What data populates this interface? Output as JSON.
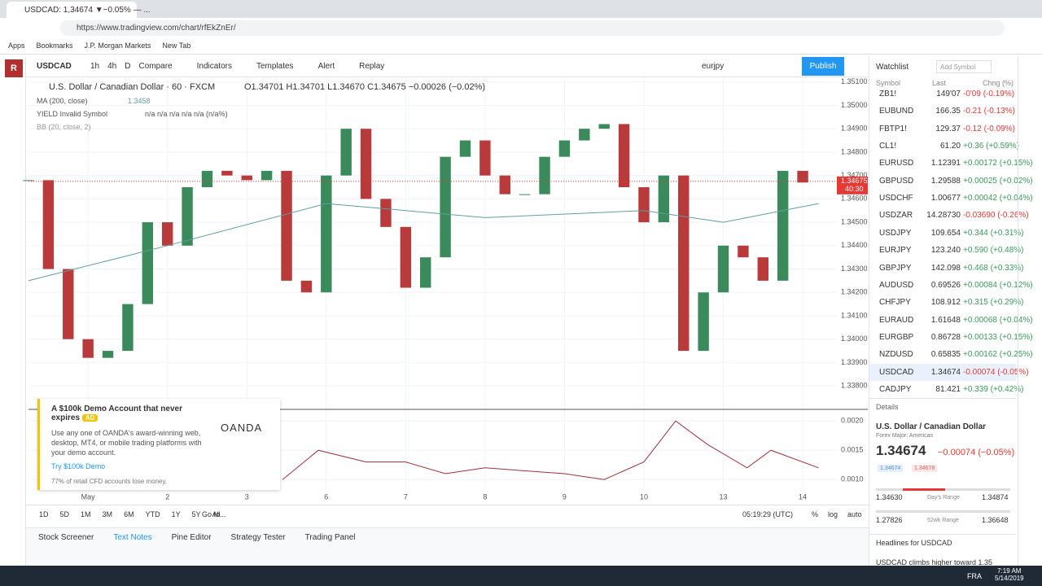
{
  "browser": {
    "tab": "USDCAD: 1,34674 ▼−0.05% — ...",
    "url": "https://www.tradingview.com/chart/rfEkZnEr/",
    "bookmarks": [
      "Apps",
      "Bookmarks",
      "J.P. Morgan Markets",
      "New Tab"
    ]
  },
  "toolbar": {
    "symbol": "USDCAD",
    "intervals": [
      "1h",
      "4h",
      "D"
    ],
    "buttons": [
      "Compare",
      "Indicators",
      "Templates",
      "Alert",
      "Replay"
    ],
    "layout": "eurjpy",
    "publish": "Publish"
  },
  "legend": {
    "title": "U.S. Dollar / Canadian Dollar · 60 · FXCM",
    "ohlc": "O1.34701 H1.34701 L1.34670 C1.34675 −0.00026 (−0.02%)",
    "ma": "MA (200, close)",
    "ma_value": "1.3458",
    "yield": "YIELD Invalid Symbol",
    "yield_values": "n/a n/a n/a n/a n/a (n/a%)",
    "bb": "BB (20, close, 2)"
  },
  "ad": {
    "title": "A $100k Demo Account that never expires",
    "badge": "AD",
    "brand": "OANDA",
    "body": "Use any one of OANDA's award-winning web, desktop, MT4, or mobile trading platforms with your demo account.",
    "link": "Try $100k Demo",
    "risk": "77% of retail CFD accounts lose money."
  },
  "chart_data": {
    "type": "candlestick",
    "up_color": "#3b8a5b",
    "down_color": "#b83a3a",
    "x": [
      -0.75,
      -0.5,
      -0.25,
      0,
      0.25,
      0.5,
      0.75,
      1,
      1.25,
      1.5,
      1.75,
      2,
      2.25,
      2.5,
      2.75,
      3,
      3.25,
      3.5,
      3.75,
      4,
      4.25,
      4.5,
      4.75,
      5,
      5.25,
      5.5,
      5.75,
      6,
      6.25,
      6.5,
      6.75,
      7,
      7.25,
      7.5,
      7.75,
      8,
      8.25,
      8.5,
      8.75,
      9
    ],
    "values": [
      1.3468,
      1.343,
      1.34,
      1.3392,
      1.3395,
      1.3415,
      1.345,
      1.344,
      1.3465,
      1.3472,
      1.347,
      1.3468,
      1.3472,
      1.3425,
      1.342,
      1.347,
      1.349,
      1.346,
      1.3448,
      1.3422,
      1.3435,
      1.3478,
      1.3485,
      1.347,
      1.3462,
      1.3462,
      1.3478,
      1.3485,
      1.349,
      1.3492,
      1.3465,
      1.345,
      1.347,
      1.3395,
      1.342,
      1.344,
      1.3435,
      1.3425,
      1.3472,
      1.3467
    ],
    "ma": {
      "color": "#5f9ea0",
      "x": [
        -0.75,
        1,
        3,
        5,
        7,
        8,
        9.2
      ],
      "values": [
        1.3425,
        1.344,
        1.3458,
        1.3452,
        1.3455,
        1.345,
        1.3458
      ]
    },
    "last_price": {
      "value": 1.34675,
      "label": "1.34675"
    },
    "countdown": "40:30",
    "xlim": [
      -0.75,
      9.43
    ],
    "ylim": [
      1.3371,
      1.3512
    ],
    "xticks": [
      {
        "value": 0,
        "label": "May"
      },
      {
        "value": 1,
        "label": "2"
      },
      {
        "value": 2,
        "label": "3"
      },
      {
        "value": 3,
        "label": "6"
      },
      {
        "value": 4,
        "label": "7"
      },
      {
        "value": 5,
        "label": "8"
      },
      {
        "value": 6,
        "label": "9"
      },
      {
        "value": 7,
        "label": "10"
      },
      {
        "value": 8,
        "label": "13"
      },
      {
        "value": 9,
        "label": "14"
      }
    ],
    "yticks": [
      {
        "value": 1.351,
        "label": "1.35100"
      },
      {
        "value": 1.35,
        "label": "1.35000"
      },
      {
        "value": 1.349,
        "label": "1.34900"
      },
      {
        "value": 1.348,
        "label": "1.34800"
      },
      {
        "value": 1.347,
        "label": "1.34700"
      },
      {
        "value": 1.346,
        "label": "1.34600"
      },
      {
        "value": 1.345,
        "label": "1.34500"
      },
      {
        "value": 1.344,
        "label": "1.34400"
      },
      {
        "value": 1.343,
        "label": "1.34300"
      },
      {
        "value": 1.342,
        "label": "1.34200"
      },
      {
        "value": 1.341,
        "label": "1.34100"
      },
      {
        "value": 1.34,
        "label": "1.34000"
      },
      {
        "value": 1.339,
        "label": "1.33900"
      },
      {
        "value": 1.338,
        "label": "1.33800"
      }
    ],
    "pane": {
      "color": "#a0303a",
      "x": [
        2.45,
        2.9,
        3.5,
        4,
        4.5,
        5,
        6,
        6.5,
        7,
        7.4,
        7.8,
        8.3,
        8.6,
        9.2
      ],
      "values": [
        0.001,
        0.0015,
        0.0013,
        0.0013,
        0.0011,
        0.0012,
        0.0011,
        0.001,
        0.0013,
        0.002,
        0.0016,
        0.0012,
        0.0015,
        0.0012
      ],
      "ylim": [
        0.00085,
        0.00217
      ],
      "yticks": [
        {
          "value": 0.002,
          "label": "0.0020"
        },
        {
          "value": 0.0015,
          "label": "0.0015"
        },
        {
          "value": 0.001,
          "label": "0.0010"
        }
      ]
    }
  },
  "bottom_bar": {
    "ranges": [
      "1D",
      "5D",
      "1M",
      "3M",
      "6M",
      "YTD",
      "1Y",
      "5Y",
      "All"
    ],
    "goto": "Go to...",
    "time": "05:19:29 (UTC)",
    "options": [
      "%",
      "log",
      "auto"
    ]
  },
  "panel_tabs": [
    "Stock Screener",
    "Text Notes",
    "Pine Editor",
    "Strategy Tester",
    "Trading Panel"
  ],
  "watchlist": {
    "title": "Watchlist",
    "add_symbol": "Add Symbol",
    "columns": [
      "Symbol",
      "Last",
      "Chng (%)"
    ],
    "rows": [
      {
        "symbol": "ZB1!",
        "last": "149'07",
        "change": "-0'09 (-0.19%)",
        "color": "#e53935"
      },
      {
        "symbol": "EUBUND",
        "last": "166.35",
        "change": "-0.21 (-0.13%)",
        "color": "#e53935"
      },
      {
        "symbol": "FBTP1!",
        "last": "129.37",
        "change": "-0.12 (-0.09%)",
        "color": "#e53935"
      },
      {
        "symbol": "CL1!",
        "last": "61.20",
        "change": "+0.36 (+0.59%)",
        "color": "#3a9a5a"
      },
      {
        "symbol": "EURUSD",
        "last": "1.12391",
        "change": "+0.00172 (+0.15%)",
        "color": "#3a9a5a"
      },
      {
        "symbol": "GBPUSD",
        "last": "1.29588",
        "change": "+0.00025 (+0.02%)",
        "color": "#3a9a5a"
      },
      {
        "symbol": "USDCHF",
        "last": "1.00677",
        "change": "+0.00042 (+0.04%)",
        "color": "#3a9a5a"
      },
      {
        "symbol": "USDZAR",
        "last": "14.28730",
        "change": "-0.03690 (-0.26%)",
        "color": "#e53935"
      },
      {
        "symbol": "USDJPY",
        "last": "109.654",
        "change": "+0.344 (+0.31%)",
        "color": "#3a9a5a"
      },
      {
        "symbol": "EURJPY",
        "last": "123.240",
        "change": "+0.590 (+0.48%)",
        "color": "#3a9a5a"
      },
      {
        "symbol": "GBPJPY",
        "last": "142.098",
        "change": "+0.468 (+0.33%)",
        "color": "#3a9a5a"
      },
      {
        "symbol": "AUDUSD",
        "last": "0.69526",
        "change": "+0.00084 (+0.12%)",
        "color": "#3a9a5a"
      },
      {
        "symbol": "CHFJPY",
        "last": "108.912",
        "change": "+0.315 (+0.29%)",
        "color": "#3a9a5a"
      },
      {
        "symbol": "EURAUD",
        "last": "1.61648",
        "change": "+0.00068 (+0.04%)",
        "color": "#3a9a5a"
      },
      {
        "symbol": "EURGBP",
        "last": "0.86728",
        "change": "+0.00133 (+0.15%)",
        "color": "#3a9a5a"
      },
      {
        "symbol": "NZDUSD",
        "last": "0.65835",
        "change": "+0.00162 (+0.25%)",
        "color": "#3a9a5a"
      },
      {
        "symbol": "USDCAD",
        "last": "1.34674",
        "change": "-0.00074 (-0.05%)",
        "color": "#e53935"
      },
      {
        "symbol": "CADJPY",
        "last": "81.421",
        "change": "+0.339 (+0.42%)",
        "color": "#3a9a5a"
      }
    ]
  },
  "details": {
    "heading": "Details",
    "name": "U.S. Dollar / Canadian Dollar",
    "category": "Forex Major: Americas",
    "price": "1.34674",
    "change": "−0.00074 (−0.05%)",
    "bid": "1.34674",
    "ask": "1.34678",
    "day_low": "1.34630",
    "day_label": "Day's Range",
    "day_high": "1.34874",
    "wk_low": "1.27826",
    "wk_label": "52wk Range",
    "wk_high": "1.36648",
    "headlines": "Headlines for USDCAD",
    "headline": "USDCAD climbs higher toward 1.35"
  },
  "taskbar": {
    "lang": "FRA",
    "time": "7:19 AM",
    "date": "5/14/2019"
  }
}
